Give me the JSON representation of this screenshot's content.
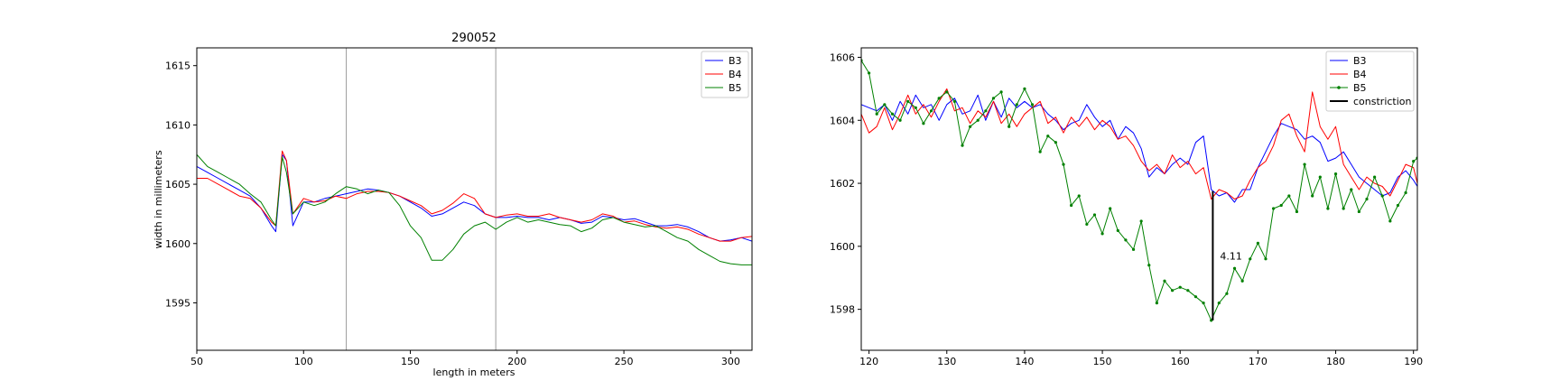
{
  "chart_data": [
    {
      "type": "line",
      "title": "290052",
      "xlabel": "length in meters",
      "ylabel": "width in millimeters",
      "xlim": [
        50,
        310
      ],
      "ylim": [
        1591,
        1616.5
      ],
      "xticks": [
        50,
        100,
        150,
        200,
        250,
        300
      ],
      "yticks": [
        1595,
        1600,
        1605,
        1610,
        1615
      ],
      "vlines": [
        120,
        190
      ],
      "grid": false,
      "legend": "top-right",
      "series": [
        {
          "name": "B3",
          "color": "#0000ff",
          "x": [
            50,
            55,
            60,
            65,
            70,
            75,
            80,
            85,
            87,
            90,
            92,
            95,
            100,
            105,
            110,
            115,
            120,
            125,
            130,
            135,
            140,
            145,
            150,
            155,
            160,
            165,
            170,
            175,
            180,
            185,
            190,
            195,
            200,
            205,
            210,
            215,
            220,
            225,
            230,
            235,
            240,
            245,
            250,
            255,
            260,
            265,
            270,
            275,
            280,
            285,
            290,
            295,
            300,
            305,
            310
          ],
          "y": [
            1606.5,
            1606,
            1605.5,
            1605,
            1604.5,
            1604,
            1603,
            1601.5,
            1601,
            1607.5,
            1607,
            1601.5,
            1603.5,
            1603.5,
            1603.8,
            1604,
            1604.2,
            1604.4,
            1604.6,
            1604.5,
            1604.3,
            1604,
            1603.5,
            1603,
            1602.3,
            1602.5,
            1603,
            1603.5,
            1603.2,
            1602.5,
            1602.2,
            1602.2,
            1602.3,
            1602.2,
            1602.2,
            1602,
            1602.2,
            1602,
            1601.7,
            1601.8,
            1602.3,
            1602.2,
            1602,
            1602.1,
            1601.8,
            1601.5,
            1601.5,
            1601.6,
            1601.4,
            1601,
            1600.5,
            1600.2,
            1600.3,
            1600.5,
            1600.2
          ]
        },
        {
          "name": "B4",
          "color": "#ff0000",
          "x": [
            50,
            55,
            60,
            65,
            70,
            75,
            80,
            85,
            87,
            90,
            92,
            95,
            100,
            105,
            110,
            115,
            120,
            125,
            130,
            135,
            140,
            145,
            150,
            155,
            160,
            165,
            170,
            175,
            180,
            185,
            190,
            195,
            200,
            205,
            210,
            215,
            220,
            225,
            230,
            235,
            240,
            245,
            250,
            255,
            260,
            265,
            270,
            275,
            280,
            285,
            290,
            295,
            300,
            305,
            310
          ],
          "y": [
            1605.5,
            1605.5,
            1605,
            1604.5,
            1604,
            1603.8,
            1603,
            1601.8,
            1601.5,
            1607.8,
            1607,
            1602.5,
            1603.8,
            1603.5,
            1603.6,
            1604,
            1603.8,
            1604.2,
            1604.4,
            1604.4,
            1604.3,
            1604,
            1603.6,
            1603.2,
            1602.5,
            1602.8,
            1603.4,
            1604.2,
            1603.8,
            1602.5,
            1602.2,
            1602.4,
            1602.5,
            1602.3,
            1602.3,
            1602.5,
            1602.2,
            1602,
            1601.8,
            1602,
            1602.5,
            1602.3,
            1601.8,
            1601.9,
            1601.6,
            1601.4,
            1601.3,
            1601.4,
            1601.2,
            1600.8,
            1600.5,
            1600.2,
            1600.2,
            1600.5,
            1600.6
          ]
        },
        {
          "name": "B5",
          "color": "#008000",
          "x": [
            50,
            55,
            60,
            65,
            70,
            75,
            80,
            85,
            87,
            90,
            92,
            95,
            100,
            105,
            110,
            115,
            120,
            125,
            130,
            135,
            140,
            145,
            150,
            155,
            160,
            165,
            170,
            175,
            180,
            185,
            190,
            195,
            200,
            205,
            210,
            215,
            220,
            225,
            230,
            235,
            240,
            245,
            250,
            255,
            260,
            265,
            270,
            275,
            280,
            285,
            290,
            295,
            300,
            305,
            310
          ],
          "y": [
            1607.5,
            1606.5,
            1606,
            1605.5,
            1605,
            1604.2,
            1603.5,
            1602,
            1601.5,
            1607.3,
            1606,
            1602.5,
            1603.5,
            1603.2,
            1603.5,
            1604.2,
            1604.8,
            1604.6,
            1604.2,
            1604.5,
            1604.3,
            1603.2,
            1601.5,
            1600.5,
            1598.6,
            1598.6,
            1599.5,
            1600.8,
            1601.5,
            1601.8,
            1601.2,
            1601.8,
            1602.2,
            1601.8,
            1602,
            1601.8,
            1601.6,
            1601.5,
            1601,
            1601.3,
            1602,
            1602.2,
            1601.8,
            1601.6,
            1601.4,
            1601.5,
            1601,
            1600.5,
            1600.2,
            1599.5,
            1599,
            1598.5,
            1598.3,
            1598.2,
            1598.2
          ]
        }
      ]
    },
    {
      "type": "line",
      "title": "",
      "xlabel": "",
      "ylabel": "",
      "xlim": [
        119,
        190.5
      ],
      "ylim": [
        1596.7,
        1606.3
      ],
      "xticks": [
        120,
        130,
        140,
        150,
        160,
        170,
        180,
        190
      ],
      "yticks": [
        1598,
        1600,
        1602,
        1604,
        1606
      ],
      "grid": false,
      "legend": "top-right",
      "annotation": {
        "name": "constriction",
        "color": "#000000",
        "x": 164.2,
        "y_top": 1601.75,
        "y_bottom": 1597.65,
        "label": "4.11"
      },
      "legend_entries": [
        "B3",
        "B4",
        "B5",
        "constriction"
      ],
      "series": [
        {
          "name": "B3",
          "color": "#0000ff",
          "markers": false,
          "x": [
            119,
            120,
            121,
            122,
            123,
            124,
            125,
            126,
            127,
            128,
            129,
            130,
            131,
            132,
            133,
            134,
            135,
            136,
            137,
            138,
            139,
            140,
            141,
            142,
            143,
            144,
            145,
            146,
            147,
            148,
            149,
            150,
            151,
            152,
            153,
            154,
            155,
            156,
            157,
            158,
            159,
            160,
            161,
            162,
            163,
            164,
            165,
            166,
            167,
            168,
            169,
            170,
            171,
            172,
            173,
            174,
            175,
            176,
            177,
            178,
            179,
            180,
            181,
            182,
            183,
            184,
            185,
            186,
            187,
            188,
            189,
            190,
            190.5
          ],
          "y": [
            1604.5,
            1604.4,
            1604.3,
            1604.5,
            1604,
            1604.6,
            1604.2,
            1604.8,
            1604.4,
            1604.5,
            1604,
            1604.5,
            1604.7,
            1604.2,
            1604.3,
            1604.8,
            1604,
            1604.6,
            1604.1,
            1604.7,
            1604.4,
            1604.6,
            1604.4,
            1604.5,
            1604.2,
            1604,
            1603.7,
            1603.9,
            1604,
            1604.5,
            1604.1,
            1603.8,
            1604,
            1603.4,
            1603.8,
            1603.6,
            1603.1,
            1602.2,
            1602.5,
            1602.3,
            1602.6,
            1602.8,
            1602.6,
            1603.3,
            1603.5,
            1601.8,
            1601.6,
            1601.7,
            1601.4,
            1601.8,
            1601.8,
            1602.5,
            1603,
            1603.5,
            1603.9,
            1603.8,
            1603.7,
            1603.4,
            1603.5,
            1603.3,
            1602.7,
            1602.8,
            1603,
            1602.6,
            1602.2,
            1602,
            1601.8,
            1601.6,
            1601.7,
            1602.2,
            1602.4,
            1602.1,
            1601.9
          ]
        },
        {
          "name": "B4",
          "color": "#ff0000",
          "markers": false,
          "x": [
            119,
            120,
            121,
            122,
            123,
            124,
            125,
            126,
            127,
            128,
            129,
            130,
            131,
            132,
            133,
            134,
            135,
            136,
            137,
            138,
            139,
            140,
            141,
            142,
            143,
            144,
            145,
            146,
            147,
            148,
            149,
            150,
            151,
            152,
            153,
            154,
            155,
            156,
            157,
            158,
            159,
            160,
            161,
            162,
            163,
            164,
            165,
            166,
            167,
            168,
            169,
            170,
            171,
            172,
            173,
            174,
            175,
            176,
            177,
            178,
            179,
            180,
            181,
            182,
            183,
            184,
            185,
            186,
            187,
            188,
            189,
            190,
            190.5
          ],
          "y": [
            1604.2,
            1603.6,
            1603.8,
            1604.4,
            1603.7,
            1604.2,
            1604.8,
            1604.2,
            1604.5,
            1604.1,
            1604.6,
            1605,
            1604.3,
            1604.4,
            1603.9,
            1604.3,
            1604.1,
            1604.6,
            1603.9,
            1604.2,
            1603.8,
            1604.2,
            1604.4,
            1604.6,
            1603.9,
            1604.1,
            1603.6,
            1604.1,
            1603.8,
            1604.1,
            1603.7,
            1604,
            1603.8,
            1603.4,
            1603.5,
            1603.2,
            1602.7,
            1602.4,
            1602.6,
            1602.3,
            1602.9,
            1602.5,
            1602.7,
            1602.3,
            1602.5,
            1601.5,
            1601.8,
            1601.7,
            1601.5,
            1601.6,
            1602.1,
            1602.5,
            1602.7,
            1603.2,
            1604,
            1604.2,
            1603.5,
            1603,
            1604.9,
            1603.8,
            1603.4,
            1603.8,
            1602.6,
            1602.2,
            1601.8,
            1602.2,
            1602,
            1601.9,
            1601.6,
            1602.1,
            1602.6,
            1602.5,
            1602
          ]
        },
        {
          "name": "B5",
          "color": "#008000",
          "markers": true,
          "x": [
            119,
            120,
            121,
            122,
            123,
            124,
            125,
            126,
            127,
            128,
            129,
            130,
            131,
            132,
            133,
            134,
            135,
            136,
            137,
            138,
            139,
            140,
            141,
            142,
            143,
            144,
            145,
            146,
            147,
            148,
            149,
            150,
            151,
            152,
            153,
            154,
            155,
            156,
            157,
            158,
            159,
            160,
            161,
            162,
            163,
            164,
            165,
            166,
            167,
            168,
            169,
            170,
            171,
            172,
            173,
            174,
            175,
            176,
            177,
            178,
            179,
            180,
            181,
            182,
            183,
            184,
            185,
            186,
            187,
            188,
            189,
            190,
            190.5
          ],
          "y": [
            1605.9,
            1605.5,
            1604.2,
            1604.5,
            1604.2,
            1604,
            1604.6,
            1604.4,
            1603.9,
            1604.3,
            1604.7,
            1604.9,
            1604.6,
            1603.2,
            1603.8,
            1604,
            1604.3,
            1604.7,
            1604.9,
            1603.8,
            1604.5,
            1605,
            1604.5,
            1603,
            1603.5,
            1603.3,
            1602.6,
            1601.3,
            1601.6,
            1600.7,
            1601,
            1600.4,
            1601.2,
            1600.5,
            1600.2,
            1599.9,
            1600.8,
            1599.4,
            1598.2,
            1598.9,
            1598.6,
            1598.7,
            1598.6,
            1598.4,
            1598.2,
            1597.65,
            1598.2,
            1598.5,
            1599.3,
            1598.9,
            1599.6,
            1600.1,
            1599.6,
            1601.2,
            1601.3,
            1601.6,
            1601.1,
            1602.6,
            1601.6,
            1602.2,
            1601.2,
            1602.3,
            1601.2,
            1601.8,
            1601.1,
            1601.5,
            1602.2,
            1601.6,
            1600.8,
            1601.3,
            1601.7,
            1602.7,
            1602.8
          ]
        }
      ]
    }
  ]
}
